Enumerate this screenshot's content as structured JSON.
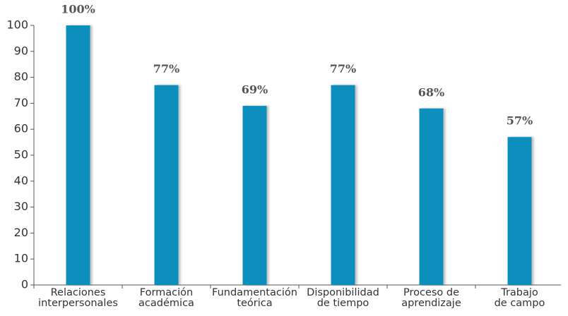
{
  "chart_data": {
    "type": "bar",
    "categories": [
      "Relaciones\ninterpersonales",
      "Formación\nacadémica",
      "Fundamentación\nteórica",
      "Disponibilidad\nde tiempo",
      "Proceso de\naprendizaje",
      "Trabajo\nde campo"
    ],
    "values": [
      100,
      77,
      69,
      77,
      68,
      57
    ],
    "value_labels": [
      "100%",
      "77%",
      "69%",
      "77%",
      "68%",
      "57%"
    ],
    "color": "#0f8fbd",
    "ylim": [
      0,
      100
    ],
    "yticks": [
      0,
      10,
      20,
      30,
      40,
      50,
      60,
      70,
      80,
      90,
      100
    ]
  }
}
